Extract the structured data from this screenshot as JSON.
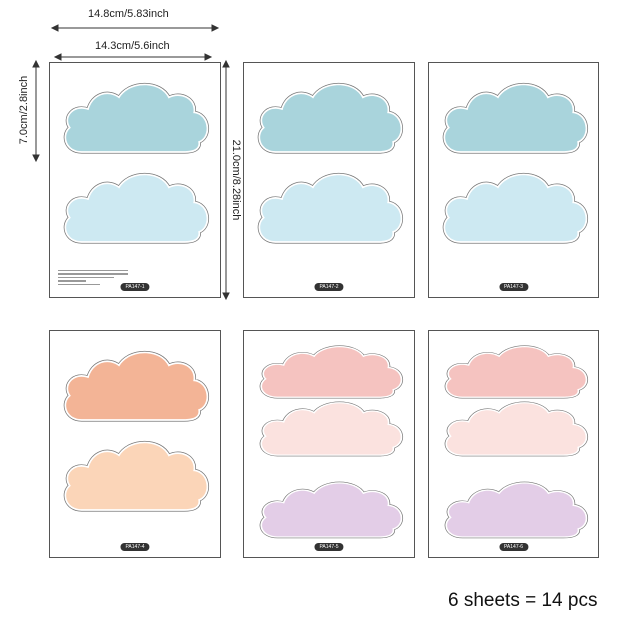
{
  "dimensions": {
    "outer_width": "14.8cm/5.83inch",
    "inner_width": "14.3cm/5.6inch",
    "cloud_height": "7.0cm/2.8inch",
    "sheet_height": "21.0cm/8.28inch"
  },
  "sheets": [
    {
      "label": "PA147-1",
      "clouds": [
        "#a9d4dc",
        "#cde9f2"
      ]
    },
    {
      "label": "PA147-2",
      "clouds": [
        "#a9d4dc",
        "#cde9f2"
      ]
    },
    {
      "label": "PA147-3",
      "clouds": [
        "#a9d4dc",
        "#cde9f2"
      ]
    },
    {
      "label": "PA147-4",
      "clouds": [
        "#f3b496",
        "#fbd5b8"
      ]
    },
    {
      "label": "PA147-5",
      "clouds": [
        "#f5c3c0",
        "#fbe2df",
        "#e3cde7"
      ]
    },
    {
      "label": "PA147-6",
      "clouds": [
        "#f5c3c0",
        "#fbe2df",
        "#e3cde7"
      ]
    }
  ],
  "caption": "6 sheets = 14 pcs"
}
